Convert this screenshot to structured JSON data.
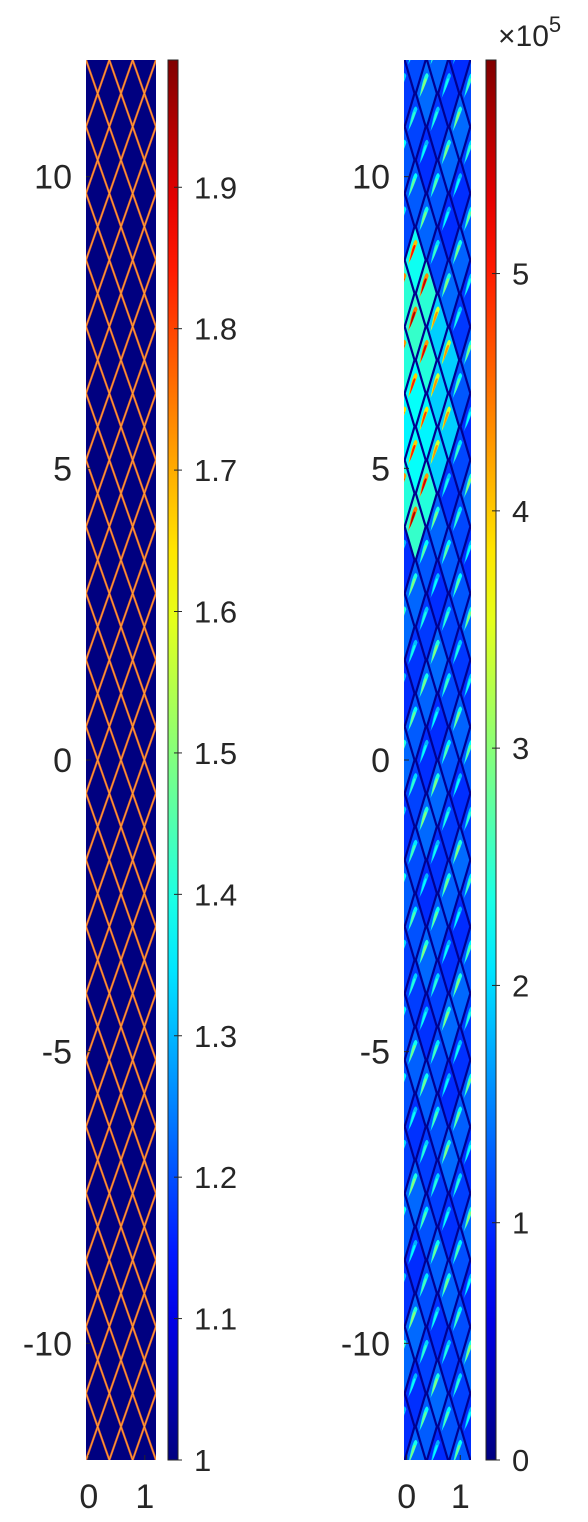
{
  "chart_data": [
    {
      "type": "heatmap",
      "title": "",
      "xlabel": "",
      "ylabel": "",
      "xlim": [
        -0.05,
        1.2
      ],
      "ylim": [
        -12,
        12
      ],
      "x_ticks": [
        0,
        1
      ],
      "x_tick_labels": [
        "0",
        "1"
      ],
      "y_ticks": [
        10,
        5,
        0,
        -5,
        -10
      ],
      "y_tick_labels": [
        "10",
        "5",
        "0",
        "-5",
        "-10"
      ],
      "pattern": "diamond lattice of thin bright lines (values near 2.0) on a uniform background of value 1.0",
      "lattice": {
        "columns": 3,
        "rows": 42
      },
      "colormap": "jet",
      "colorbar": {
        "min": 1,
        "max": 1.99,
        "ticks": [
          1,
          1.1,
          1.2,
          1.3,
          1.4,
          1.5,
          1.6,
          1.7,
          1.8,
          1.9
        ],
        "tick_labels": [
          "1",
          "1.1",
          "1.2",
          "1.3",
          "1.4",
          "1.5",
          "1.6",
          "1.7",
          "1.8",
          "1.9"
        ],
        "exponent_label": ""
      }
    },
    {
      "type": "heatmap",
      "title": "",
      "xlabel": "",
      "ylabel": "",
      "xlim": [
        -0.05,
        1.2
      ],
      "ylim": [
        -12,
        12
      ],
      "x_ticks": [
        0,
        1
      ],
      "x_tick_labels": [
        "0",
        "1"
      ],
      "y_ticks": [
        10,
        5,
        0,
        -5,
        -10
      ],
      "y_tick_labels": [
        "10",
        "5",
        "0",
        "-5",
        "-10"
      ],
      "pattern": "diamond cells with bright crescent peaks; strongest peaks (about 5.5e5) in the left column between y = 4 and y = 8",
      "lattice": {
        "columns": 3,
        "rows": 42
      },
      "colormap": "jet",
      "colorbar": {
        "min": 0,
        "max": 5.9,
        "ticks": [
          0,
          1,
          2,
          3,
          4,
          5
        ],
        "tick_labels": [
          "0",
          "1",
          "2",
          "3",
          "4",
          "5"
        ],
        "exponent_label": "×10",
        "exponent_power": "5"
      }
    }
  ]
}
